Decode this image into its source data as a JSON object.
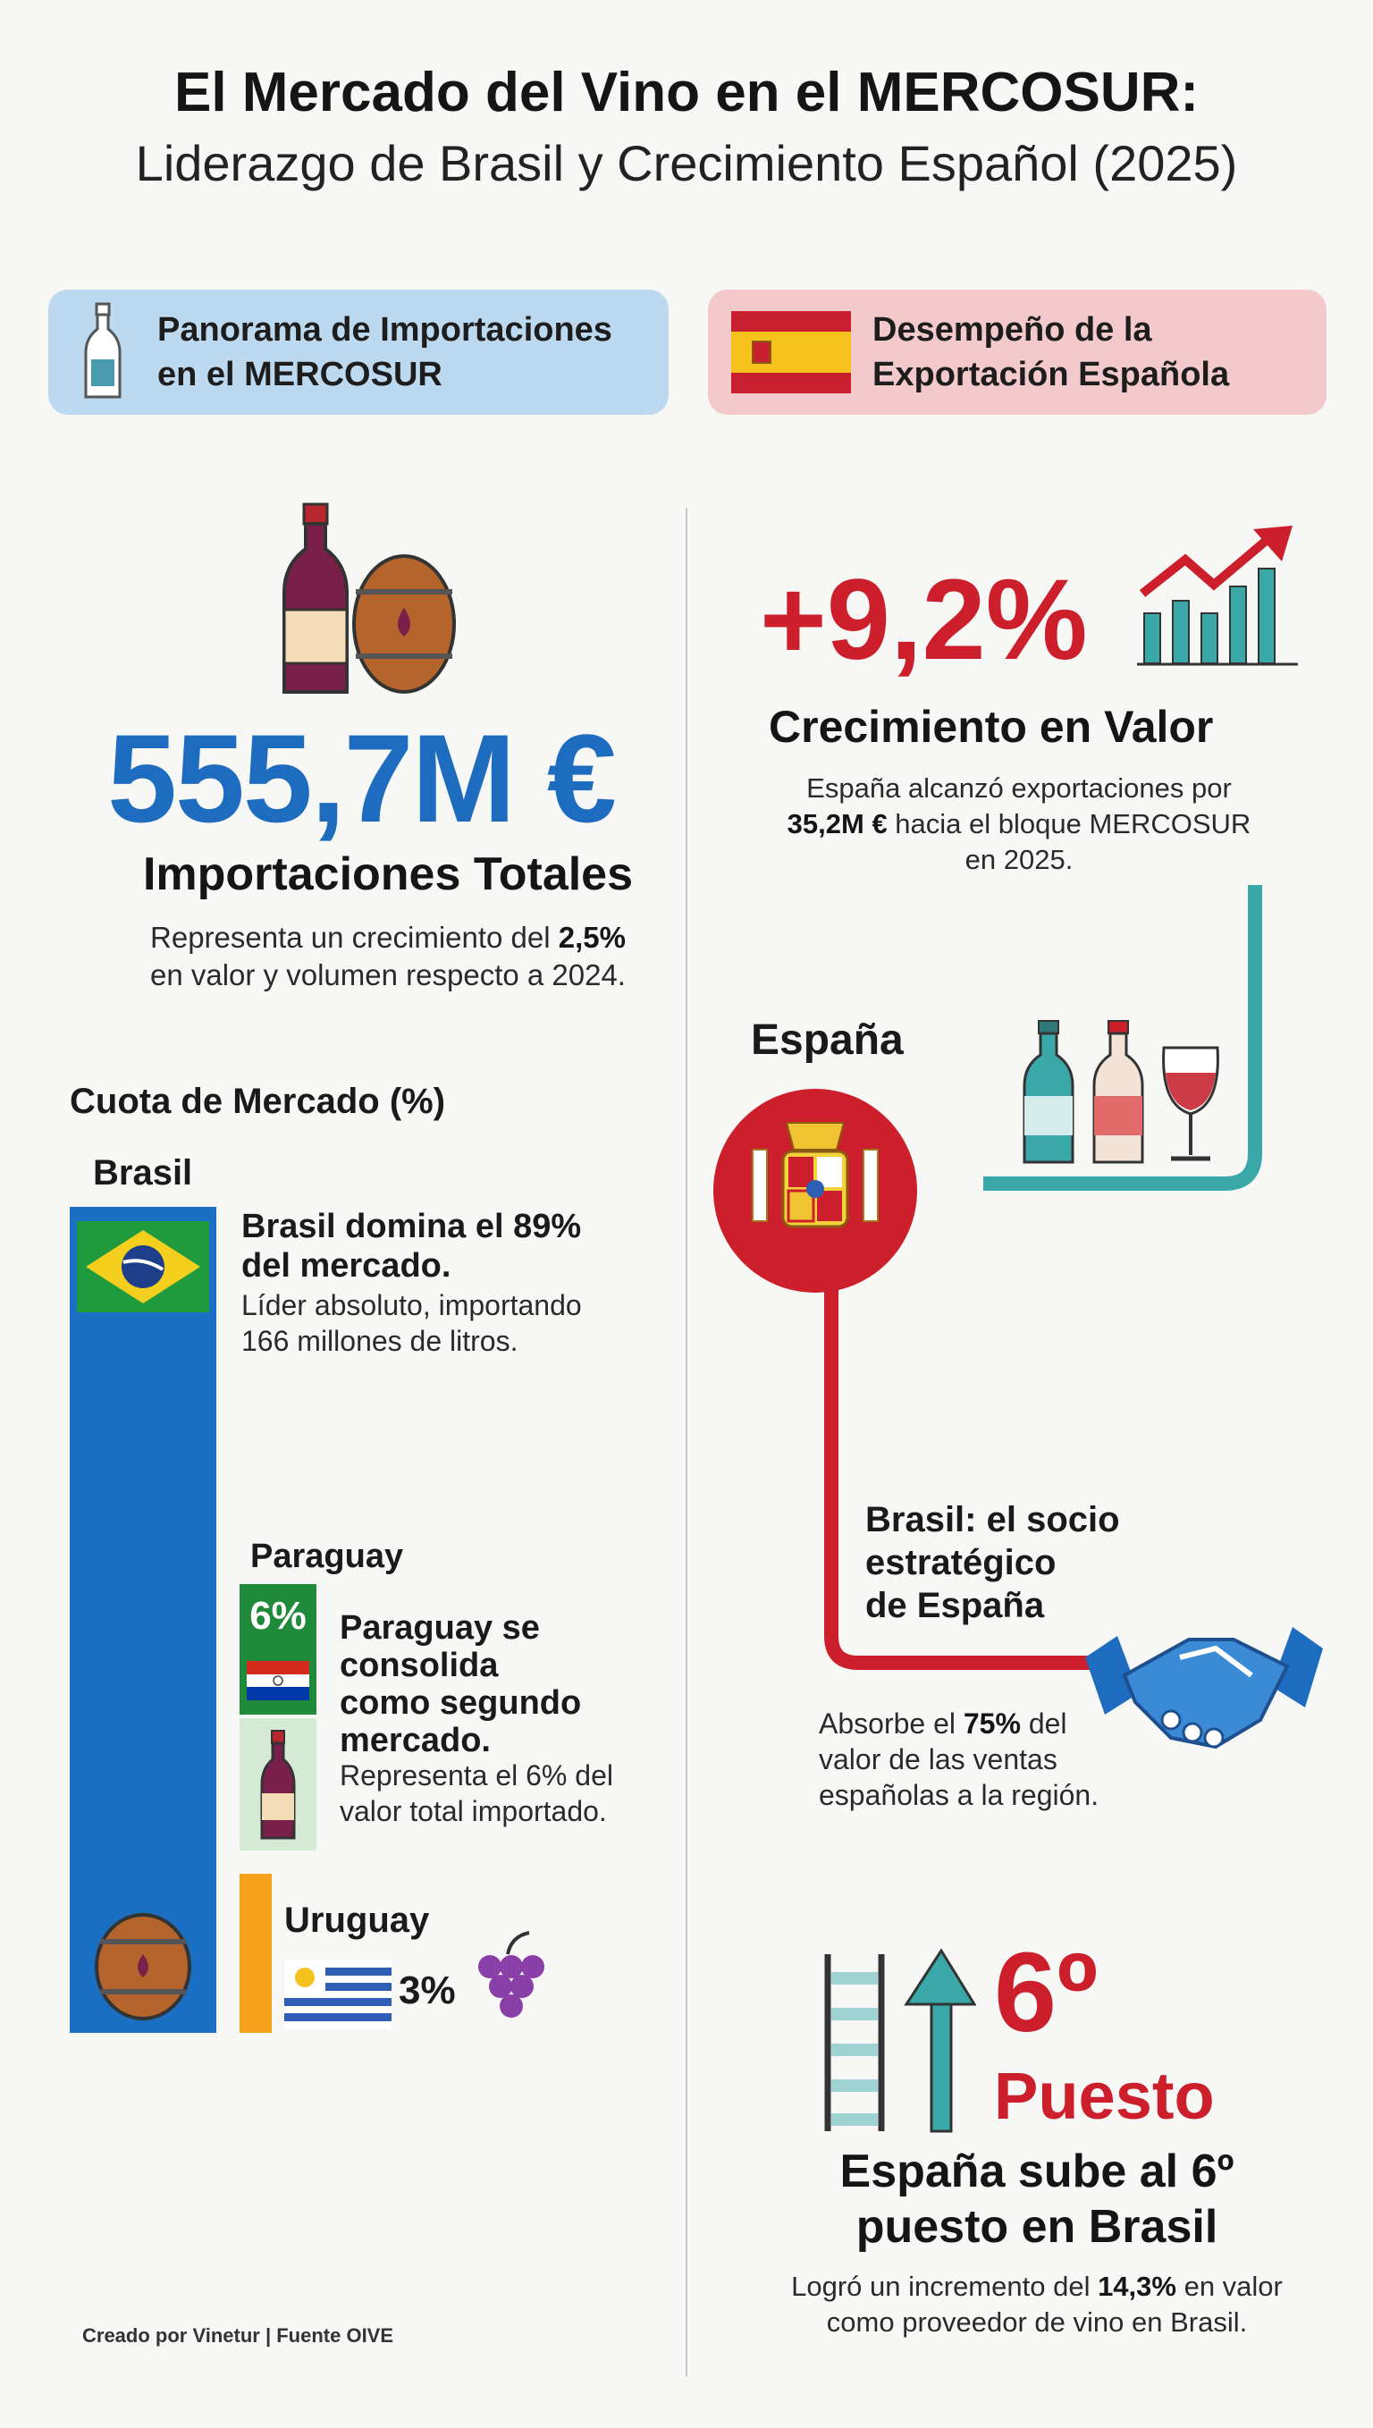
{
  "header": {
    "title": "El Mercado del Vino en el MERCOSUR:",
    "subtitle": "Liderazgo de Brasil y Crecimiento Español (2025)"
  },
  "sections": {
    "left_banner": {
      "line1": "Panorama de Importaciones",
      "line2": "en el MERCOSUR",
      "icon": "wine-bottle-icon"
    },
    "right_banner": {
      "line1": "Desempeño de la",
      "line2": "Exportación Española",
      "icon": "spain-flag-icon"
    }
  },
  "imports": {
    "value": "555,7M €",
    "label": "Importaciones Totales",
    "desc_line1_pre": "Representa un crecimiento del ",
    "desc_line1_bold": "2,5%",
    "desc_line2": "en valor y volumen respecto a 2024."
  },
  "market_share": {
    "title": "Cuota de Mercado (%)",
    "brasil": {
      "name": "Brasil",
      "headline1": "Brasil domina el 89%",
      "headline2": "del mercado.",
      "detail1": "Líder absoluto, importando",
      "detail2": "166 millones de litros.",
      "share": 89
    },
    "paraguay": {
      "name": "Paraguay",
      "pct": "6%",
      "headline1": "Paraguay se",
      "headline2": "consolida",
      "headline3": "como segundo",
      "headline4": "mercado.",
      "detail1": "Representa el 6% del",
      "detail2": "valor total importado.",
      "share": 6
    },
    "uruguay": {
      "name": "Uruguay",
      "pct": "3%",
      "share": 3
    }
  },
  "exports": {
    "growth": "+9,2%",
    "growth_label": "Crecimiento en Valor",
    "desc_line1": "España alcanzó exportaciones por",
    "desc_line2_bold": "35,2M €",
    "desc_line2_rest": " hacia el bloque MERCOSUR",
    "desc_line3": "en 2025.",
    "spain_label": "España",
    "partner1": "Brasil: el socio",
    "partner2": "estratégico",
    "partner3": "de España",
    "absorb_pre": "Absorbe el ",
    "absorb_bold": "75%",
    "absorb_post": " del",
    "absorb2": "valor de las ventas",
    "absorb3": "españolas a la región."
  },
  "ranking": {
    "rank": "6º",
    "rank_word": "Puesto",
    "headline1": "España sube al 6º",
    "headline2": "puesto en Brasil",
    "desc_pre": "Logró un incremento del ",
    "desc_bold": "14,3%",
    "desc_post": " en valor",
    "desc2": "como proveedor de vino en Brasil."
  },
  "footer": "Creado por Vinetur | Fuente OIVE",
  "colors": {
    "blue": "#1e6cbf",
    "red": "#cc1f2b",
    "teal": "#3aa7a8",
    "orange": "#f4a11e",
    "green": "#1f8a3a"
  }
}
